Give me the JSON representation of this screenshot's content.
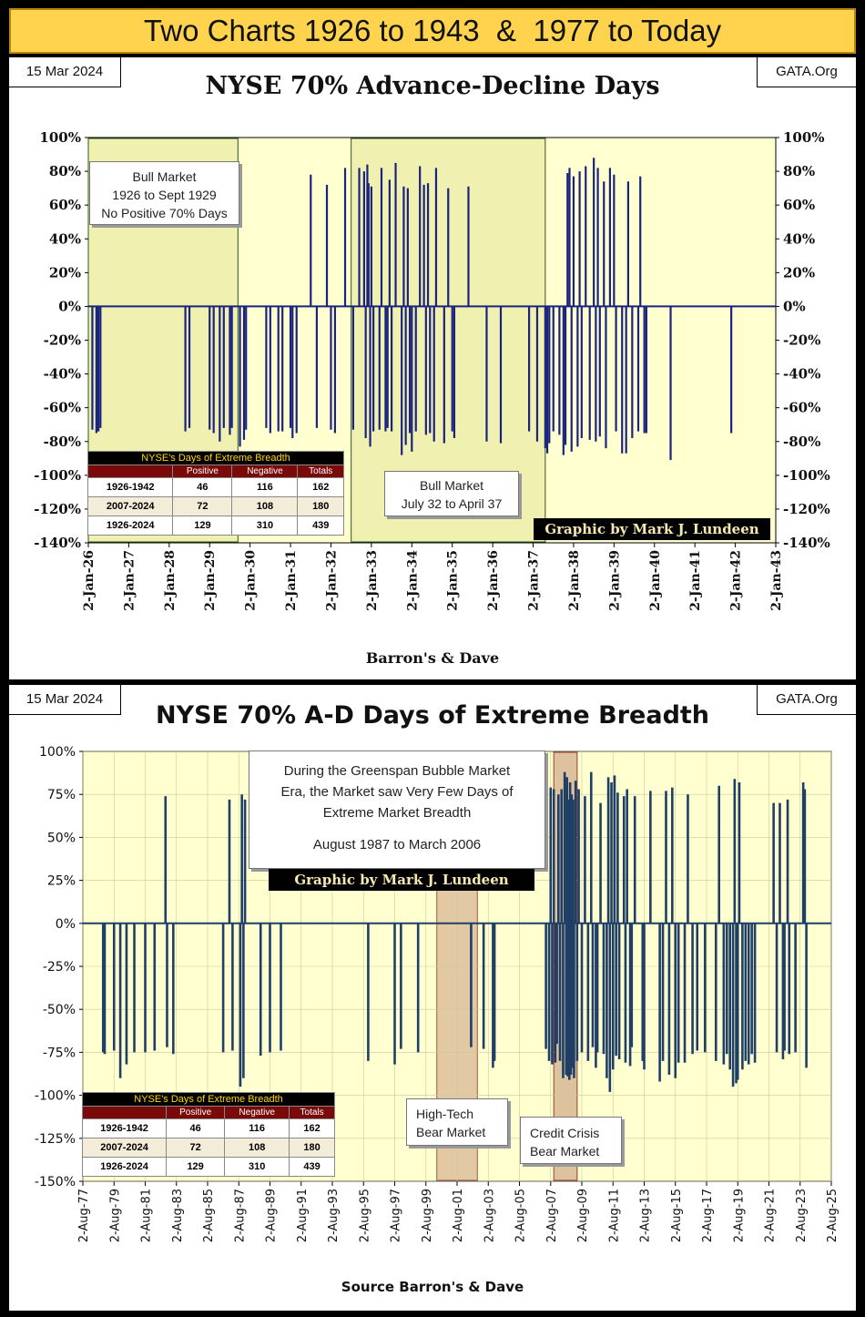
{
  "banner": "Two Charts 1926 to 1943  &  1977 to Today",
  "stats_table": {
    "title": "NYSE's Days of Extreme Breadth",
    "columns": [
      "",
      "Positive",
      "Negative",
      "Totals"
    ],
    "rows": [
      [
        "1926-1942",
        "46",
        "116",
        "162"
      ],
      [
        "2007-2024",
        "72",
        "108",
        "180"
      ],
      [
        "1926-2024",
        "129",
        "310",
        "439"
      ]
    ]
  },
  "colors": {
    "bars": "#1a237e",
    "bars_modern": "#1f3f66",
    "plot_bg": "#ffffd0",
    "banner_bg": "#ffd34d",
    "shade_bull": "#f0f0b0",
    "shade_bear": "#d8b896"
  },
  "chart_data": [
    {
      "type": "bar",
      "date": "15 Mar 2024",
      "source_tag": "GATA.Org",
      "title": "NYSE 70% Advance-Decline Days",
      "xlabel": "Barron's & Dave",
      "ylabel": "",
      "ylim": [
        -140,
        100
      ],
      "yticks": [
        "100%",
        "80%",
        "60%",
        "40%",
        "20%",
        "0%",
        "-20%",
        "-40%",
        "-60%",
        "-80%",
        "-100%",
        "-120%",
        "-140%"
      ],
      "xticks": [
        "2-Jan-26",
        "2-Jan-27",
        "2-Jan-28",
        "2-Jan-29",
        "2-Jan-30",
        "2-Jan-31",
        "2-Jan-32",
        "2-Jan-33",
        "2-Jan-34",
        "2-Jan-35",
        "2-Jan-36",
        "2-Jan-37",
        "2-Jan-38",
        "2-Jan-39",
        "2-Jan-40",
        "2-Jan-41",
        "2-Jan-42",
        "2-Jan-43"
      ],
      "xlim": [
        1926.0,
        1943.0
      ],
      "shaded_regions": [
        {
          "label": "Bull Market 1926 to Sept 1929",
          "start": 1926.0,
          "end": 1929.7
        },
        {
          "label": "Bull Market July 32 to April 37",
          "start": 1932.5,
          "end": 1937.3
        }
      ],
      "annotations": [
        {
          "lines": [
            "Bull Market",
            "1926 to Sept 1929",
            "No Positive 70% Days"
          ]
        },
        {
          "lines": [
            "Bull Market",
            "July 32 to April 37"
          ]
        }
      ],
      "credit": "Graphic by Mark J. Lundeen",
      "points": [
        [
          1926.1,
          -73
        ],
        [
          1926.2,
          -75
        ],
        [
          1926.25,
          -74
        ],
        [
          1926.3,
          -72
        ],
        [
          1928.4,
          -74
        ],
        [
          1928.5,
          -72
        ],
        [
          1929.0,
          -73
        ],
        [
          1929.1,
          -75
        ],
        [
          1929.25,
          -80
        ],
        [
          1929.35,
          -72
        ],
        [
          1929.5,
          -76
        ],
        [
          1929.55,
          -72
        ],
        [
          1929.75,
          -83
        ],
        [
          1929.85,
          -79
        ],
        [
          1929.9,
          -73
        ],
        [
          1930.4,
          -72
        ],
        [
          1930.5,
          -75
        ],
        [
          1930.7,
          -74
        ],
        [
          1930.8,
          -74
        ],
        [
          1931.0,
          -72
        ],
        [
          1931.05,
          -78
        ],
        [
          1931.15,
          -75
        ],
        [
          1931.5,
          78
        ],
        [
          1931.65,
          -72
        ],
        [
          1931.9,
          72
        ],
        [
          1932.0,
          -73
        ],
        [
          1932.1,
          -75
        ],
        [
          1932.35,
          82
        ],
        [
          1932.55,
          -73
        ],
        [
          1932.7,
          82
        ],
        [
          1932.82,
          80
        ],
        [
          1932.86,
          -78
        ],
        [
          1932.9,
          84
        ],
        [
          1932.93,
          73
        ],
        [
          1932.97,
          -83
        ],
        [
          1933.0,
          71
        ],
        [
          1933.05,
          -74
        ],
        [
          1933.2,
          -73
        ],
        [
          1933.25,
          82
        ],
        [
          1933.35,
          -74
        ],
        [
          1933.4,
          -72
        ],
        [
          1933.45,
          75
        ],
        [
          1933.5,
          -74
        ],
        [
          1933.6,
          85
        ],
        [
          1933.75,
          -88
        ],
        [
          1933.8,
          71
        ],
        [
          1933.85,
          -82
        ],
        [
          1933.9,
          70
        ],
        [
          1933.95,
          -75
        ],
        [
          1934.0,
          -86
        ],
        [
          1934.1,
          -74
        ],
        [
          1934.2,
          83
        ],
        [
          1934.3,
          72
        ],
        [
          1934.35,
          -76
        ],
        [
          1934.4,
          73
        ],
        [
          1934.45,
          -75
        ],
        [
          1934.55,
          -80
        ],
        [
          1934.6,
          82
        ],
        [
          1934.8,
          -81
        ],
        [
          1934.9,
          70
        ],
        [
          1935.0,
          -74
        ],
        [
          1935.05,
          -78
        ],
        [
          1935.4,
          71
        ],
        [
          1935.85,
          -80
        ],
        [
          1936.2,
          -81
        ],
        [
          1936.9,
          -74
        ],
        [
          1937.1,
          -80
        ],
        [
          1937.3,
          -84
        ],
        [
          1937.35,
          -87
        ],
        [
          1937.4,
          -81
        ],
        [
          1937.5,
          -74
        ],
        [
          1937.65,
          -76
        ],
        [
          1937.75,
          -88
        ],
        [
          1937.8,
          -82
        ],
        [
          1937.85,
          79
        ],
        [
          1937.9,
          82
        ],
        [
          1937.95,
          -86
        ],
        [
          1938.0,
          77
        ],
        [
          1938.1,
          -83
        ],
        [
          1938.15,
          80
        ],
        [
          1938.2,
          -78
        ],
        [
          1938.3,
          83
        ],
        [
          1938.4,
          -79
        ],
        [
          1938.5,
          88
        ],
        [
          1938.55,
          -80
        ],
        [
          1938.6,
          82
        ],
        [
          1938.65,
          -77
        ],
        [
          1938.75,
          74
        ],
        [
          1938.8,
          -84
        ],
        [
          1938.9,
          82
        ],
        [
          1939.0,
          78
        ],
        [
          1939.05,
          -74
        ],
        [
          1939.2,
          -87
        ],
        [
          1939.3,
          -87
        ],
        [
          1939.35,
          74
        ],
        [
          1939.45,
          -78
        ],
        [
          1939.6,
          -74
        ],
        [
          1939.65,
          77
        ],
        [
          1939.75,
          -75
        ],
        [
          1939.8,
          -75
        ],
        [
          1940.4,
          -91
        ],
        [
          1941.9,
          -75
        ]
      ]
    },
    {
      "type": "bar",
      "date": "15 Mar 2024",
      "source_tag": "GATA.Org",
      "title": "NYSE 70% A-D Days of Extreme Breadth",
      "xlabel": "Source Barron's & Dave",
      "ylabel": "",
      "ylim": [
        -150,
        100
      ],
      "yticks": [
        "100%",
        "75%",
        "50%",
        "25%",
        "0%",
        "-25%",
        "-50%",
        "-75%",
        "-100%",
        "-125%",
        "-150%"
      ],
      "xticks": [
        "2-Aug-77",
        "2-Aug-79",
        "2-Aug-81",
        "2-Aug-83",
        "2-Aug-85",
        "2-Aug-87",
        "2-Aug-89",
        "2-Aug-91",
        "2-Aug-93",
        "2-Aug-95",
        "2-Aug-97",
        "2-Aug-99",
        "2-Aug-01",
        "2-Aug-03",
        "2-Aug-05",
        "2-Aug-07",
        "2-Aug-09",
        "2-Aug-11",
        "2-Aug-13",
        "2-Aug-15",
        "2-Aug-17",
        "2-Aug-19",
        "2-Aug-21",
        "2-Aug-23",
        "2-Aug-25"
      ],
      "xlim": [
        1977.6,
        2025.6
      ],
      "shaded_regions": [
        {
          "label": "High-Tech Bear Market",
          "start": 2000.3,
          "end": 2002.9
        },
        {
          "label": "Credit Crisis Bear Market",
          "start": 2007.8,
          "end": 2009.3
        }
      ],
      "annotations": [
        {
          "lines": [
            "During the Greenspan Bubble Market",
            "Era, the Market saw Very Few Days of",
            "Extreme Market Breadth",
            "",
            "August 1987 to March 2006"
          ]
        },
        {
          "lines": [
            "High-Tech",
            "Bear Market"
          ]
        },
        {
          "lines": [
            "Credit  Crisis",
            "Bear Market"
          ]
        }
      ],
      "credit": "Graphic by Mark J. Lundeen",
      "points": [
        [
          1978.9,
          -75
        ],
        [
          1979.0,
          -76
        ],
        [
          1979.6,
          -74
        ],
        [
          1980.0,
          -90
        ],
        [
          1980.4,
          -82
        ],
        [
          1980.9,
          -75
        ],
        [
          1981.6,
          -75
        ],
        [
          1982.2,
          -74
        ],
        [
          1982.9,
          74
        ],
        [
          1983.0,
          -72
        ],
        [
          1983.4,
          -76
        ],
        [
          1986.6,
          -75
        ],
        [
          1987.0,
          72
        ],
        [
          1987.2,
          -74
        ],
        [
          1987.7,
          -95
        ],
        [
          1987.8,
          75
        ],
        [
          1987.9,
          -90
        ],
        [
          1988.0,
          72
        ],
        [
          1989.0,
          -77
        ],
        [
          1989.6,
          -75
        ],
        [
          1990.3,
          -74
        ],
        [
          1995.9,
          -80
        ],
        [
          1997.6,
          -82
        ],
        [
          1998.0,
          -73
        ],
        [
          1999.1,
          -75
        ],
        [
          2002.5,
          -72
        ],
        [
          2003.3,
          -73
        ],
        [
          2003.9,
          -84
        ],
        [
          2004.0,
          -80
        ],
        [
          2007.3,
          -73
        ],
        [
          2007.5,
          -80
        ],
        [
          2007.6,
          79
        ],
        [
          2007.7,
          -82
        ],
        [
          2007.8,
          78
        ],
        [
          2007.9,
          -81
        ],
        [
          2008.0,
          -70
        ],
        [
          2008.1,
          75
        ],
        [
          2008.2,
          -80
        ],
        [
          2008.3,
          78
        ],
        [
          2008.4,
          -90
        ],
        [
          2008.5,
          88
        ],
        [
          2008.6,
          -88
        ],
        [
          2008.65,
          85
        ],
        [
          2008.7,
          -89
        ],
        [
          2008.75,
          72
        ],
        [
          2008.8,
          -91
        ],
        [
          2008.85,
          82
        ],
        [
          2008.9,
          -88
        ],
        [
          2008.95,
          75
        ],
        [
          2009.0,
          -84
        ],
        [
          2009.05,
          72
        ],
        [
          2009.1,
          -90
        ],
        [
          2009.2,
          83
        ],
        [
          2009.3,
          -80
        ],
        [
          2009.4,
          78
        ],
        [
          2009.6,
          -75
        ],
        [
          2009.8,
          74
        ],
        [
          2010.0,
          -80
        ],
        [
          2010.2,
          88
        ],
        [
          2010.3,
          -72
        ],
        [
          2010.5,
          -84
        ],
        [
          2010.6,
          -75
        ],
        [
          2010.8,
          70
        ],
        [
          2011.0,
          -76
        ],
        [
          2011.2,
          -90
        ],
        [
          2011.3,
          85
        ],
        [
          2011.4,
          -98
        ],
        [
          2011.5,
          82
        ],
        [
          2011.6,
          -85
        ],
        [
          2011.7,
          86
        ],
        [
          2011.8,
          -77
        ],
        [
          2011.9,
          76
        ],
        [
          2012.0,
          -79
        ],
        [
          2012.3,
          74
        ],
        [
          2012.4,
          -81
        ],
        [
          2012.5,
          78
        ],
        [
          2012.7,
          -83
        ],
        [
          2012.8,
          -72
        ],
        [
          2013.0,
          74
        ],
        [
          2013.5,
          -80
        ],
        [
          2013.6,
          -85
        ],
        [
          2014.0,
          77
        ],
        [
          2014.6,
          -92
        ],
        [
          2014.8,
          -80
        ],
        [
          2015.0,
          77
        ],
        [
          2015.2,
          -88
        ],
        [
          2015.4,
          79
        ],
        [
          2015.6,
          -90
        ],
        [
          2015.8,
          -81
        ],
        [
          2016.2,
          -81
        ],
        [
          2016.4,
          75
        ],
        [
          2016.7,
          -76
        ],
        [
          2017.0,
          -74
        ],
        [
          2017.5,
          -75
        ],
        [
          2018.2,
          -80
        ],
        [
          2018.4,
          80
        ],
        [
          2018.7,
          -82
        ],
        [
          2018.9,
          -76
        ],
        [
          2019.1,
          -85
        ],
        [
          2019.3,
          -95
        ],
        [
          2019.4,
          84
        ],
        [
          2019.5,
          -93
        ],
        [
          2019.6,
          -91
        ],
        [
          2019.7,
          82
        ],
        [
          2019.9,
          -85
        ],
        [
          2020.1,
          -80
        ],
        [
          2020.3,
          -82
        ],
        [
          2020.5,
          -76
        ],
        [
          2020.7,
          -81
        ],
        [
          2021.9,
          70
        ],
        [
          2022.1,
          -75
        ],
        [
          2022.3,
          70
        ],
        [
          2022.5,
          -79
        ],
        [
          2022.6,
          -74
        ],
        [
          2022.8,
          72
        ],
        [
          2022.9,
          -76
        ],
        [
          2023.3,
          -75
        ],
        [
          2023.8,
          82
        ],
        [
          2023.9,
          78
        ],
        [
          2024.0,
          -84
        ]
      ]
    }
  ]
}
